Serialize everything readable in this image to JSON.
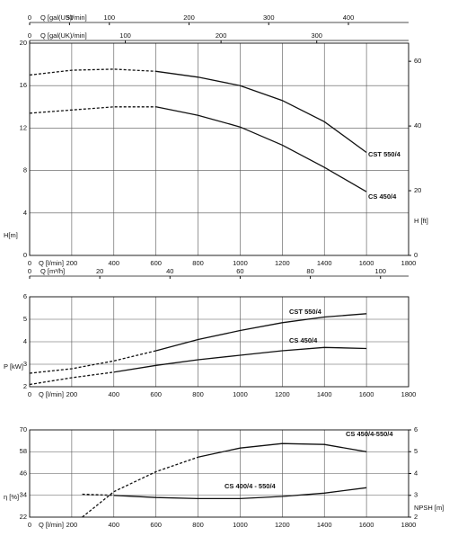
{
  "chart_data": [
    {
      "type": "line",
      "xlabel": "Q [l/min]",
      "ylabel": "H[m]",
      "y2label": "H [ft]",
      "xlim": [
        0,
        1800
      ],
      "xticks": [
        0,
        200,
        400,
        600,
        800,
        1000,
        1200,
        1400,
        1600,
        1800
      ],
      "ylim": [
        0,
        20
      ],
      "yticks": [
        0,
        4,
        8,
        12,
        16,
        20
      ],
      "y2lim": [
        0,
        65.6
      ],
      "y2ticks": [
        0,
        20,
        40,
        60
      ],
      "top_axes": [
        {
          "label": "Q [gal(US)/min]",
          "xlim": [
            0,
            475.5
          ],
          "xticks": [
            0,
            50,
            100,
            200,
            300,
            400
          ]
        },
        {
          "label": "Q [gal(UK)/min]",
          "xlim": [
            0,
            396
          ],
          "xticks": [
            0,
            100,
            200,
            300
          ]
        }
      ],
      "grid": true,
      "x": [
        0,
        200,
        400,
        600,
        800,
        1000,
        1200,
        1400,
        1600
      ],
      "series": [
        {
          "name": "CST 550/4",
          "color": "#111111",
          "dashed_below": 600,
          "values": [
            17,
            17.45,
            17.55,
            17.35,
            16.8,
            16,
            14.6,
            12.6,
            9.7
          ]
        },
        {
          "name": "CS 450/4",
          "color": "#111111",
          "dashed_below": 600,
          "values": [
            13.4,
            13.7,
            14.0,
            14.0,
            13.2,
            12.1,
            10.4,
            8.3,
            6.0
          ]
        }
      ]
    },
    {
      "type": "line",
      "xlabel": "Q [l/min]",
      "ylabel": "P [kW]",
      "xlim": [
        0,
        1800
      ],
      "xticks": [
        0,
        200,
        400,
        600,
        800,
        1000,
        1200,
        1400,
        1600,
        1800
      ],
      "ylim": [
        2,
        6
      ],
      "yticks": [
        2,
        3,
        4,
        5,
        6
      ],
      "top_axes": [
        {
          "label": "Q [m³/h]",
          "xlim": [
            0,
            108
          ],
          "xticks": [
            0,
            20,
            40,
            60,
            80,
            100
          ]
        }
      ],
      "grid": true,
      "x": [
        0,
        200,
        400,
        600,
        800,
        1000,
        1200,
        1400,
        1600
      ],
      "series": [
        {
          "name": "CST 550/4",
          "color": "#111111",
          "dashed_below": 600,
          "values": [
            2.6,
            2.8,
            3.15,
            3.6,
            4.1,
            4.5,
            4.85,
            5.1,
            5.25
          ]
        },
        {
          "name": "CS 450/4",
          "color": "#111111",
          "dashed_below": 400,
          "values": [
            2.1,
            2.4,
            2.65,
            2.95,
            3.2,
            3.4,
            3.6,
            3.75,
            3.7
          ]
        }
      ]
    },
    {
      "type": "line",
      "xlabel": "Q [l/min]",
      "ylabel": "η [%]",
      "y2label": "NPSH [m]",
      "xlim": [
        0,
        1800
      ],
      "xticks": [
        0,
        200,
        400,
        600,
        800,
        1000,
        1200,
        1400,
        1600,
        1800
      ],
      "ylim": [
        22,
        70
      ],
      "yticks": [
        22,
        34,
        46,
        58,
        70
      ],
      "y2lim": [
        2,
        6
      ],
      "y2ticks": [
        2,
        3,
        4,
        5,
        6
      ],
      "grid": true,
      "x": [
        250,
        400,
        600,
        800,
        1000,
        1200,
        1400,
        1600
      ],
      "series": [
        {
          "name": "CS 450/4-550/4",
          "color": "#111111",
          "dashed_below": 800,
          "values": [
            22,
            36,
            47,
            55,
            60,
            62.5,
            62,
            58
          ]
        },
        {
          "name": "CS 400/4 - 550/4",
          "color": "#111111",
          "dashed_below": 400,
          "axis": "y2",
          "values": [
            3.05,
            3.0,
            2.9,
            2.85,
            2.85,
            2.95,
            3.1,
            3.35
          ]
        }
      ]
    }
  ]
}
